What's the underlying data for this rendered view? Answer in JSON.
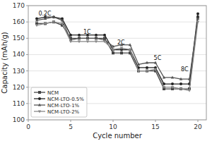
{
  "chart_data": {
    "type": "line",
    "xlabel": "Cycle number",
    "ylabel": "Capacity (mAh/g)",
    "x": [
      1,
      2,
      3,
      4,
      5,
      6,
      7,
      8,
      9,
      10,
      11,
      12,
      13,
      14,
      15,
      16,
      17,
      18,
      19,
      20
    ],
    "series": [
      {
        "name": "NCM",
        "color": "#444444",
        "marker": "square",
        "values": [
          159,
          159,
          160,
          158,
          150,
          150,
          150,
          150,
          150,
          141,
          141,
          141,
          130,
          130,
          130,
          119,
          119,
          119,
          119,
          163
        ]
      },
      {
        "name": "NCM-LTO-0.5%",
        "color": "#222222",
        "marker": "circle",
        "values": [
          162,
          163,
          163,
          162,
          152,
          152,
          152,
          152,
          152,
          143,
          143,
          143,
          132,
          132,
          132,
          122,
          122,
          122,
          122,
          165
        ]
      },
      {
        "name": "NCM-LTO-1%",
        "color": "#555555",
        "marker": "triangle-up",
        "values": [
          161,
          162,
          163,
          161,
          149,
          150,
          150,
          150,
          149,
          145,
          146,
          146,
          134,
          135,
          135,
          126,
          126,
          125,
          125,
          162
        ]
      },
      {
        "name": "NCM-LTO-2%",
        "color": "#888888",
        "marker": "triangle-down",
        "values": [
          158,
          159,
          160,
          159,
          148,
          148,
          148,
          148,
          148,
          143,
          144,
          143,
          130,
          130,
          131,
          120,
          120,
          119,
          118,
          160
        ]
      }
    ],
    "annotations": [
      {
        "text": "0.2C",
        "x": 1.2,
        "y": 163.5
      },
      {
        "text": "1C",
        "x": 6.5,
        "y": 152.5
      },
      {
        "text": "2C",
        "x": 10.5,
        "y": 146.0
      },
      {
        "text": "5C",
        "x": 14.8,
        "y": 136.5
      },
      {
        "text": "8C",
        "x": 18.0,
        "y": 129.5
      }
    ],
    "xlim": [
      0,
      21
    ],
    "ylim": [
      100,
      170
    ],
    "xticks": [
      0,
      5,
      10,
      15,
      20
    ],
    "yticks": [
      100,
      110,
      120,
      130,
      140,
      150,
      160,
      170
    ],
    "grid": true,
    "legend": "lower left"
  }
}
